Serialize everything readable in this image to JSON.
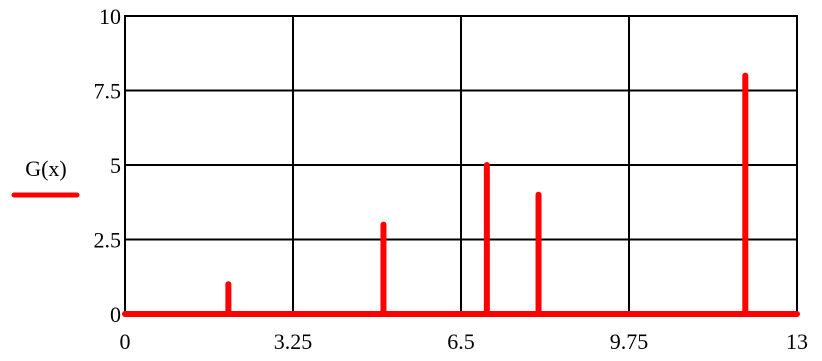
{
  "chart_data": {
    "type": "line",
    "title": "",
    "xlabel": "",
    "ylabel": "G(x)",
    "xlim": [
      0,
      13
    ],
    "ylim": [
      0,
      10
    ],
    "grid": true,
    "xticks": [
      0,
      3.25,
      6.5,
      9.75,
      13
    ],
    "xtick_labels": [
      "0",
      "3.25",
      "6.5",
      "9.75",
      "13"
    ],
    "yticks": [
      0,
      2.5,
      5,
      7.5,
      10
    ],
    "ytick_labels": [
      "0",
      "2.5",
      "5",
      "7.5",
      "10"
    ],
    "series": [
      {
        "name": "G(x)",
        "color": "#ff0000",
        "style": "impulses",
        "points": [
          {
            "x": 2,
            "y": 1
          },
          {
            "x": 5,
            "y": 3
          },
          {
            "x": 7,
            "y": 5
          },
          {
            "x": 8,
            "y": 4
          },
          {
            "x": 12,
            "y": 8
          }
        ]
      }
    ]
  }
}
